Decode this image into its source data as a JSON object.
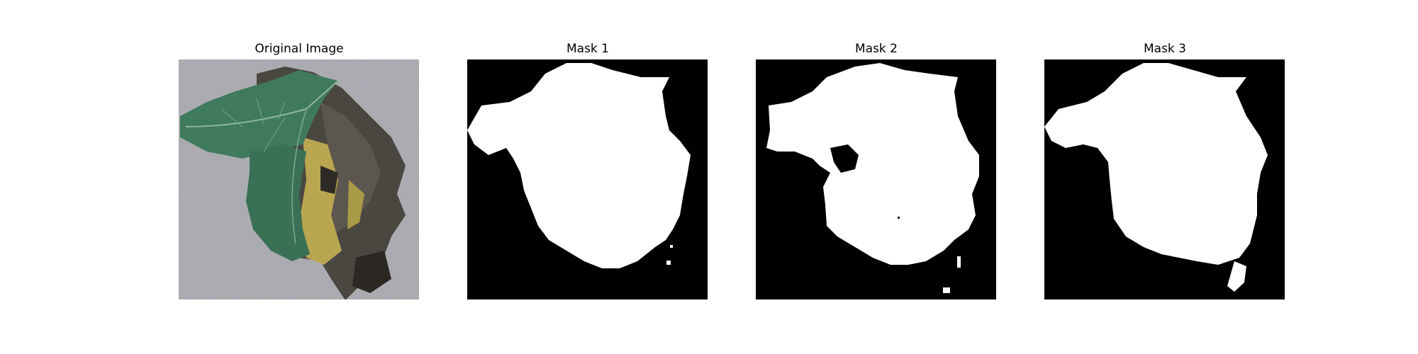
{
  "figure": {
    "panels": [
      {
        "title": "Original Image",
        "kind": "photo",
        "subject": "leaf-photo"
      },
      {
        "title": "Mask 1",
        "kind": "mask"
      },
      {
        "title": "Mask 2",
        "kind": "mask"
      },
      {
        "title": "Mask 3",
        "kind": "mask"
      }
    ]
  },
  "colors": {
    "background": "#ffffff",
    "mask_bg": "#000000",
    "mask_fg": "#ffffff",
    "photo_bg": "#a9a9b0",
    "leaf_green": "#3f7a5c",
    "leaf_dark": "#2f5f47",
    "necrotic": "#4a4640",
    "chlorotic": "#b9a650"
  }
}
